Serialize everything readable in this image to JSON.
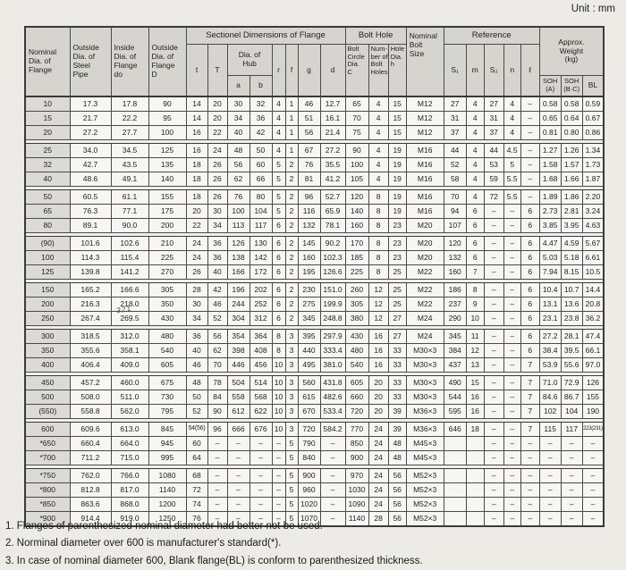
{
  "unit_label": "Unit : mm",
  "annotation": "321",
  "header": {
    "nominal": "Nominal\nDia. of\nFlange",
    "outside_pipe": "Outside\nDia. of\nSteel\nPipe",
    "inside_flange": "Inside\nDia. of\nFlange\ndo",
    "outside_flange": "Outside\nDia. of\nFlange\nD",
    "sectional": "Sectionel  Dimensions  of  Flange",
    "t": "t",
    "T": "T",
    "hub": "Dia. of\nHub",
    "a": "a",
    "b": "b",
    "r": "r",
    "f": "f",
    "g": "g",
    "d": "d",
    "bolt_hole": "Bolt  Hole",
    "bolt_circle": "Bolt\nCircle\nDia.\nC",
    "num_holes": "Num-\nber of\nBolt\nHoles",
    "hole_dia": "Hole\nDia.\nh",
    "bolt_size": "Nominal\nBolt\nSize",
    "reference": "Reference",
    "s1": "S₁",
    "m": "m",
    "s2": "S₂",
    "n": "n",
    "l": "ℓ",
    "weight": "Approx.\nWeight\n(kg)",
    "soh_a": "SOH\n(A)",
    "soh_bc": "SOH\n(B·C)",
    "bl": "BL"
  },
  "table": {
    "groups": [
      [
        [
          "10",
          "17.3",
          "17.8",
          "90",
          "14",
          "20",
          "30",
          "32",
          "4",
          "1",
          "46",
          "12.7",
          "65",
          "4",
          "15",
          "M12",
          "27",
          "4",
          "27",
          "4",
          "–",
          "0.58",
          "0.58",
          "0.59"
        ],
        [
          "15",
          "21.7",
          "22.2",
          "95",
          "14",
          "20",
          "34",
          "36",
          "4",
          "1",
          "51",
          "16.1",
          "70",
          "4",
          "15",
          "M12",
          "31",
          "4",
          "31",
          "4",
          "–",
          "0.65",
          "0.64",
          "0.67"
        ],
        [
          "20",
          "27.2",
          "27.7",
          "100",
          "16",
          "22",
          "40",
          "42",
          "4",
          "1",
          "56",
          "21.4",
          "75",
          "4",
          "15",
          "M12",
          "37",
          "4",
          "37",
          "4",
          "–",
          "0.81",
          "0.80",
          "0.86"
        ]
      ],
      [
        [
          "25",
          "34.0",
          "34.5",
          "125",
          "16",
          "24",
          "48",
          "50",
          "4",
          "1",
          "67",
          "27.2",
          "90",
          "4",
          "19",
          "M16",
          "44",
          "4",
          "44",
          "4.5",
          "–",
          "1.27",
          "1.26",
          "1.34"
        ],
        [
          "32",
          "42.7",
          "43.5",
          "135",
          "18",
          "26",
          "56",
          "60",
          "5",
          "2",
          "76",
          "35.5",
          "100",
          "4",
          "19",
          "M16",
          "52",
          "4",
          "53",
          "5",
          "–",
          "1.58",
          "1.57",
          "1.73"
        ],
        [
          "40",
          "48.6",
          "49.1",
          "140",
          "18",
          "26",
          "62",
          "66",
          "5",
          "2",
          "81",
          "41.2",
          "105",
          "4",
          "19",
          "M16",
          "58",
          "4",
          "59",
          "5.5",
          "–",
          "1.68",
          "1.66",
          "1.87"
        ]
      ],
      [
        [
          "50",
          "60.5",
          "61.1",
          "155",
          "18",
          "26",
          "76",
          "80",
          "5",
          "2",
          "96",
          "52.7",
          "120",
          "8",
          "19",
          "M16",
          "70",
          "4",
          "72",
          "5.5",
          "–",
          "1.89",
          "1.86",
          "2.20"
        ],
        [
          "65",
          "76.3",
          "77.1",
          "175",
          "20",
          "30",
          "100",
          "104",
          "5",
          "2",
          "116",
          "65.9",
          "140",
          "8",
          "19",
          "M16",
          "94",
          "6",
          "–",
          "–",
          "6",
          "2.73",
          "2.81",
          "3.24"
        ],
        [
          "80",
          "89.1",
          "90.0",
          "200",
          "22",
          "34",
          "113",
          "117",
          "6",
          "2",
          "132",
          "78.1",
          "160",
          "8",
          "23",
          "M20",
          "107",
          "6",
          "–",
          "–",
          "6",
          "3.85",
          "3.95",
          "4.63"
        ]
      ],
      [
        [
          "(90)",
          "101.6",
          "102.6",
          "210",
          "24",
          "36",
          "126",
          "130",
          "6",
          "2",
          "145",
          "90.2",
          "170",
          "8",
          "23",
          "M20",
          "120",
          "6",
          "–",
          "–",
          "6",
          "4.47",
          "4.59",
          "5.67"
        ],
        [
          "100",
          "114.3",
          "115.4",
          "225",
          "24",
          "36",
          "138",
          "142",
          "6",
          "2",
          "160",
          "102.3",
          "185",
          "8",
          "23",
          "M20",
          "132",
          "6",
          "–",
          "–",
          "6",
          "5.03",
          "5.18",
          "6.61"
        ],
        [
          "125",
          "139.8",
          "141.2",
          "270",
          "26",
          "40",
          "166",
          "172",
          "6",
          "2",
          "195",
          "126.6",
          "225",
          "8",
          "25",
          "M22",
          "160",
          "7",
          "–",
          "–",
          "6",
          "7.94",
          "8.15",
          "10.5"
        ]
      ],
      [
        [
          "150",
          "165.2",
          "166.6",
          "305",
          "28",
          "42",
          "196",
          "202",
          "6",
          "2",
          "230",
          "151.0",
          "260",
          "12",
          "25",
          "M22",
          "186",
          "8",
          "–",
          "–",
          "6",
          "10.4",
          "10.7",
          "14.4"
        ],
        [
          "200",
          "216.3",
          "218.0",
          "350",
          "30",
          "46",
          "244",
          "252",
          "6",
          "2",
          "275",
          "199.9",
          "305",
          "12",
          "25",
          "M22",
          "237",
          "9",
          "–",
          "–",
          "6",
          "13.1",
          "13.6",
          "20.8"
        ],
        [
          "250",
          "267.4",
          "269.5",
          "430",
          "34",
          "52",
          "304",
          "312",
          "6",
          "2",
          "345",
          "248.8",
          "380",
          "12",
          "27",
          "M24",
          "290",
          "10",
          "–",
          "–",
          "6",
          "23.1",
          "23.8",
          "36.2"
        ]
      ],
      [
        [
          "300",
          "318.5",
          "312.0",
          "480",
          "36",
          "56",
          "354",
          "364",
          "8",
          "3",
          "395",
          "297.9",
          "430",
          "16",
          "27",
          "M24",
          "345",
          "11",
          "–",
          "–",
          "6",
          "27.2",
          "28.1",
          "47.4"
        ],
        [
          "350",
          "355.6",
          "358.1",
          "540",
          "40",
          "62",
          "398",
          "408",
          "8",
          "3",
          "440",
          "333.4",
          "480",
          "16",
          "33",
          "M30×3",
          "384",
          "12",
          "–",
          "–",
          "6",
          "38.4",
          "39.5",
          "66.1"
        ],
        [
          "400",
          "406.4",
          "409.0",
          "605",
          "46",
          "70",
          "446",
          "456",
          "10",
          "3",
          "495",
          "381.0",
          "540",
          "16",
          "33",
          "M30×3",
          "437",
          "13",
          "–",
          "–",
          "7",
          "53.9",
          "55.6",
          "97.0"
        ]
      ],
      [
        [
          "450",
          "457.2",
          "460.0",
          "675",
          "48",
          "78",
          "504",
          "514",
          "10",
          "3",
          "560",
          "431.8",
          "605",
          "20",
          "33",
          "M30×3",
          "490",
          "15",
          "–",
          "–",
          "7",
          "71.0",
          "72.9",
          "126"
        ],
        [
          "500",
          "508.0",
          "511.0",
          "730",
          "50",
          "84",
          "558",
          "568",
          "10",
          "3",
          "615",
          "482.6",
          "660",
          "20",
          "33",
          "M30×3",
          "544",
          "16",
          "–",
          "–",
          "7",
          "84.6",
          "86.7",
          "155"
        ],
        [
          "(550)",
          "558.8",
          "562.0",
          "795",
          "52",
          "90",
          "612",
          "622",
          "10",
          "3",
          "670",
          "533.4",
          "720",
          "20",
          "39",
          "M36×3",
          "595",
          "16",
          "–",
          "–",
          "7",
          "102",
          "104",
          "190"
        ]
      ],
      [
        [
          "600",
          "609.6",
          "613.0",
          "845",
          "54(56)",
          "96",
          "666",
          "676",
          "10",
          "3",
          "720",
          "584.2",
          "770",
          "24",
          "39",
          "M36×3",
          "646",
          "18",
          "–",
          "–",
          "7",
          "115",
          "117",
          "223(231)"
        ],
        [
          "*650",
          "660.4",
          "664.0",
          "945",
          "60",
          "–",
          "–",
          "–",
          "–",
          "5",
          "790",
          "–",
          "850",
          "24",
          "48",
          "M45×3",
          "",
          "",
          "–",
          "–",
          "–",
          "–",
          "–",
          "–"
        ],
        [
          "*700",
          "711.2",
          "715.0",
          "995",
          "64",
          "–",
          "–",
          "–",
          "–",
          "5",
          "840",
          "–",
          "900",
          "24",
          "48",
          "M45×3",
          "",
          "",
          "–",
          "–",
          "–",
          "–",
          "–",
          "–"
        ]
      ],
      [
        [
          "*750",
          "762.0",
          "766.0",
          "1080",
          "68",
          "–",
          "–",
          "–",
          "–",
          "5",
          "900",
          "–",
          "970",
          "24",
          "56",
          "M52×3",
          "",
          "",
          "–",
          "–",
          "–",
          "–",
          "–",
          "–"
        ],
        [
          "*800",
          "812.8",
          "817.0",
          "1140",
          "72",
          "–",
          "–",
          "–",
          "–",
          "5",
          "960",
          "–",
          "1030",
          "24",
          "56",
          "M52×3",
          "",
          "",
          "–",
          "–",
          "–",
          "–",
          "–",
          "–"
        ],
        [
          "*850",
          "863.6",
          "868.0",
          "1200",
          "74",
          "–",
          "–",
          "–",
          "–",
          "5",
          "1020",
          "–",
          "1090",
          "24",
          "56",
          "M52×3",
          "",
          "",
          "–",
          "–",
          "–",
          "–",
          "–",
          "–"
        ],
        [
          "*900",
          "914.4",
          "919.0",
          "1250",
          "76",
          "–",
          "–",
          "–",
          "–",
          "5",
          "1070",
          "–",
          "1140",
          "28",
          "56",
          "M52×3",
          "",
          "",
          "–",
          "–",
          "–",
          "–",
          "–",
          "–"
        ]
      ]
    ]
  },
  "notes": [
    "1. Flanges of parenthesized nominal diameter had better not be used.",
    "2. Norminal diameter over 600 is manufacturer's standard(*).",
    "3. In case of nominal diameter 600, Blank flange(BL) is conform to parenthesized thickness."
  ]
}
